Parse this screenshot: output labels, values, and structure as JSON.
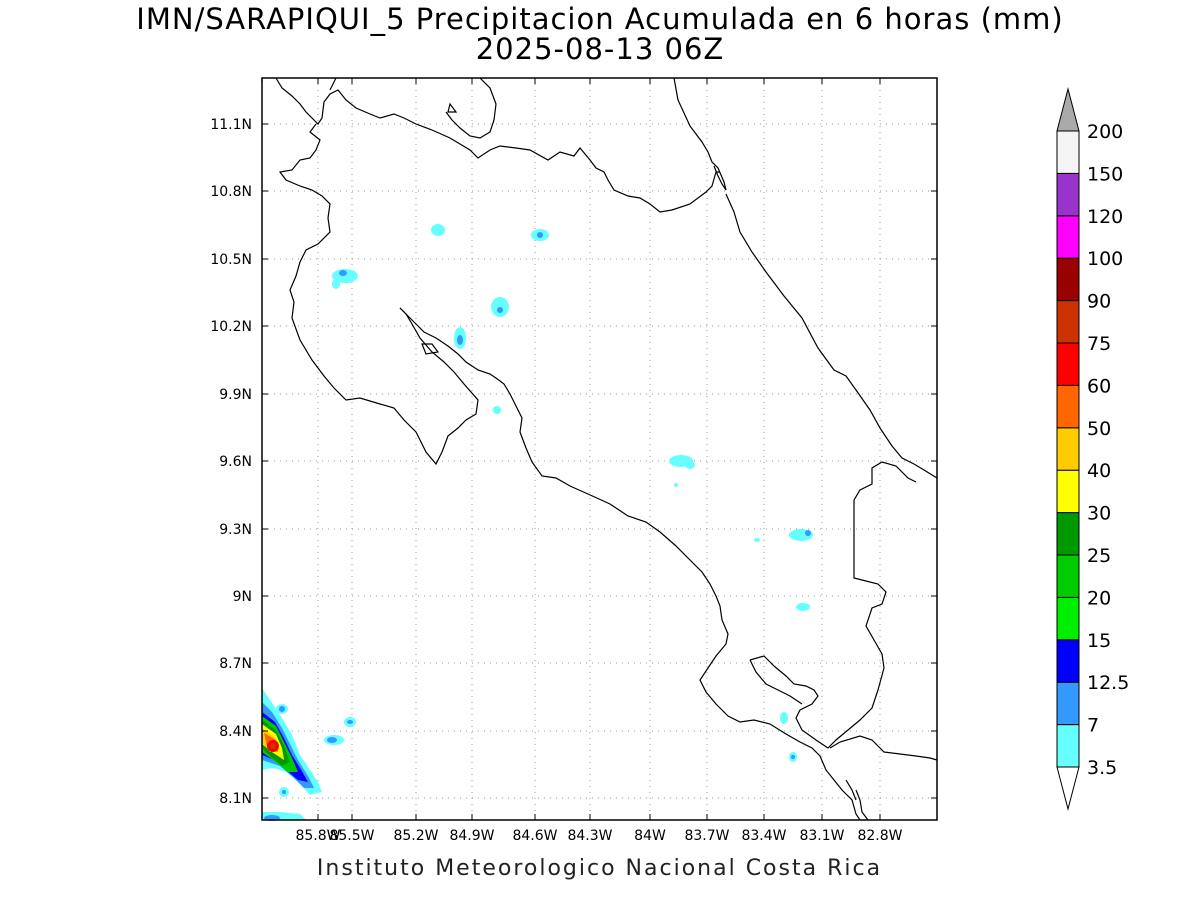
{
  "title": {
    "line1": "IMN/SARAPIQUI_5 Precipitacion Acumulada en 6 horas (mm)",
    "line2": "2025-08-13 06Z"
  },
  "credit": "Instituto Meteorologico Nacional Costa Rica",
  "map": {
    "lon_labels": [
      "85.8W",
      "85.5W",
      "85.2W",
      "84.9W",
      "84.6W",
      "84.3W",
      "84W",
      "83.7W",
      "83.4W",
      "83.1W",
      "82.8W"
    ],
    "lat_labels": [
      "11.1N",
      "10.8N",
      "10.5N",
      "10.2N",
      "9.9N",
      "9.6N",
      "9.3N",
      "9N",
      "8.7N",
      "8.4N",
      "8.1N"
    ],
    "grid": true
  },
  "colorbar": {
    "labels": [
      "3.5",
      "7",
      "12.5",
      "15",
      "20",
      "25",
      "30",
      "40",
      "50",
      "60",
      "75",
      "90",
      "100",
      "120",
      "150",
      "200"
    ],
    "colors": [
      "#66ffff",
      "#3399ff",
      "#0000ff",
      "#00ee00",
      "#00cc00",
      "#009900",
      "#ffff00",
      "#ffcc00",
      "#ff6600",
      "#ff0000",
      "#cc3300",
      "#990000",
      "#ff00ff",
      "#9933cc",
      "#f5f5f5",
      "#aaaaaa"
    ]
  }
}
